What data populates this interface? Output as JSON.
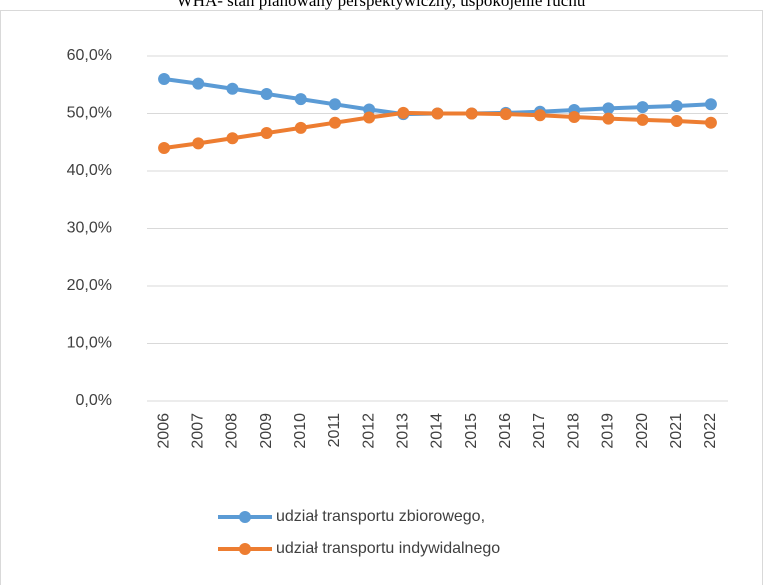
{
  "chart_data": {
    "type": "line",
    "title": "WHA- stan planowany perspektywiczny, uspokojenie ruchu",
    "categories": [
      "2006",
      "2007",
      "2008",
      "2009",
      "2010",
      "2011",
      "2012",
      "2013",
      "2014",
      "2015",
      "2016",
      "2017",
      "2018",
      "2019",
      "2020",
      "2021",
      "2022"
    ],
    "series": [
      {
        "name": "udział transportu zbiorowego,",
        "color": "#5b9bd5",
        "values": [
          56.0,
          55.2,
          54.3,
          53.4,
          52.5,
          51.6,
          50.7,
          49.9,
          50.0,
          50.0,
          50.1,
          50.3,
          50.6,
          50.9,
          51.1,
          51.3,
          51.6
        ]
      },
      {
        "name": "udział transportu indywidalnego",
        "color": "#ed7d31",
        "values": [
          44.0,
          44.8,
          45.7,
          46.6,
          47.5,
          48.4,
          49.3,
          50.1,
          50.0,
          50.0,
          49.9,
          49.7,
          49.4,
          49.1,
          48.9,
          48.7,
          48.4
        ]
      }
    ],
    "ylim": [
      0,
      60
    ],
    "yticks": [
      {
        "value": 0,
        "label": "0,0%"
      },
      {
        "value": 10,
        "label": "10,0%"
      },
      {
        "value": 20,
        "label": "20,0%"
      },
      {
        "value": 30,
        "label": "30,0%"
      },
      {
        "value": 40,
        "label": "40,0%"
      },
      {
        "value": 50,
        "label": "50,0%"
      },
      {
        "value": 60,
        "label": "60,0%"
      }
    ],
    "grid": true,
    "legend": "bottom"
  }
}
